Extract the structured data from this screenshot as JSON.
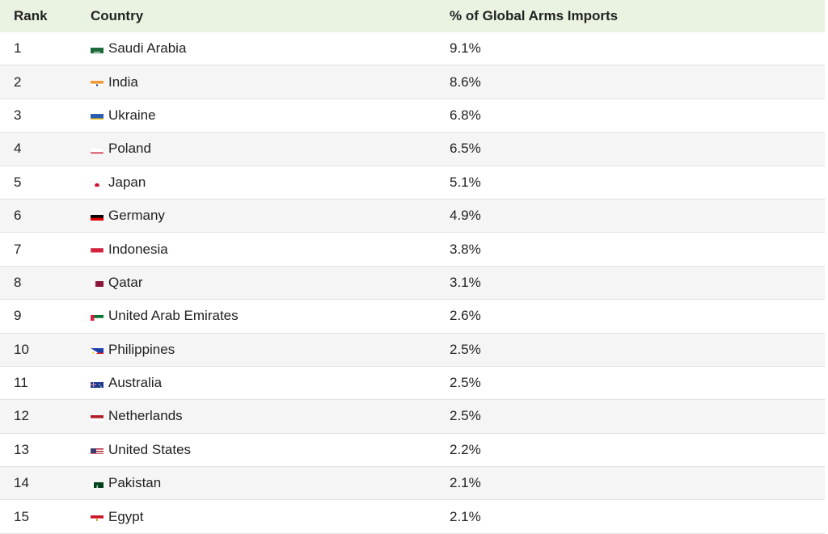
{
  "chart_data": {
    "type": "table",
    "columns": [
      "Rank",
      "Country",
      "% of Global Arms Imports"
    ],
    "rows": [
      {
        "rank": "1",
        "country": "Saudi Arabia",
        "value": "9.1%",
        "flag": "saudi-arabia-flag"
      },
      {
        "rank": "2",
        "country": "India",
        "value": "8.6%",
        "flag": "india-flag"
      },
      {
        "rank": "3",
        "country": "Ukraine",
        "value": "6.8%",
        "flag": "ukraine-flag"
      },
      {
        "rank": "4",
        "country": "Poland",
        "value": "6.5%",
        "flag": "poland-flag"
      },
      {
        "rank": "5",
        "country": "Japan",
        "value": "5.1%",
        "flag": "japan-flag"
      },
      {
        "rank": "6",
        "country": "Germany",
        "value": "4.9%",
        "flag": "germany-flag"
      },
      {
        "rank": "7",
        "country": "Indonesia",
        "value": "3.8%",
        "flag": "indonesia-flag"
      },
      {
        "rank": "8",
        "country": "Qatar",
        "value": "3.1%",
        "flag": "qatar-flag"
      },
      {
        "rank": "9",
        "country": "United Arab Emirates",
        "value": "2.6%",
        "flag": "uae-flag"
      },
      {
        "rank": "10",
        "country": "Philippines",
        "value": "2.5%",
        "flag": "philippines-flag"
      },
      {
        "rank": "11",
        "country": "Australia",
        "value": "2.5%",
        "flag": "australia-flag"
      },
      {
        "rank": "12",
        "country": "Netherlands",
        "value": "2.5%",
        "flag": "netherlands-flag"
      },
      {
        "rank": "13",
        "country": "United States",
        "value": "2.2%",
        "flag": "usa-flag"
      },
      {
        "rank": "14",
        "country": "Pakistan",
        "value": "2.1%",
        "flag": "pakistan-flag"
      },
      {
        "rank": "15",
        "country": "Egypt",
        "value": "2.1%",
        "flag": "egypt-flag"
      }
    ]
  },
  "colors": {
    "header_background": "#eaf3e1",
    "alternate_row_background": "#f5f5f5",
    "divider": "#e2e2e2"
  }
}
